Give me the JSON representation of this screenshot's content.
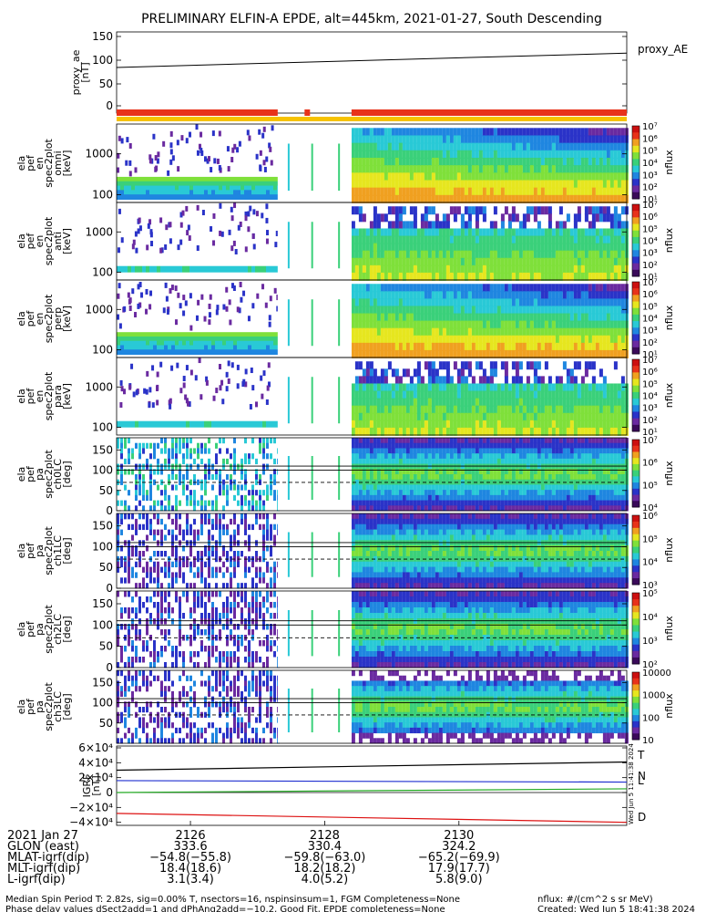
{
  "title": "PRELIMINARY ELFIN-A EPDE, alt=445km, 2021-01-27, South Descending",
  "colors": {
    "colormap": [
      "#ffffff",
      "#3a0a5a",
      "#6a2aa0",
      "#2a33c8",
      "#1f86e0",
      "#29c9d6",
      "#3ad07a",
      "#7fe03a",
      "#e6e61f",
      "#f0a020",
      "#e8321a",
      "#cc1010"
    ],
    "bar_red": "#e8321a",
    "bar_yellow": "#f6c200",
    "trace_T": "#000000",
    "trace_N": "#1f2fd0",
    "trace_L": "#22aa22",
    "trace_D": "#dd1111"
  },
  "panels": {
    "proxy": {
      "ylabel": "proxy_ae\n[nT]",
      "ticks": [
        "150",
        "100",
        "50",
        "0"
      ],
      "legend": "proxy_AE"
    },
    "spec": [
      {
        "ylabel": "ela\npef\nen\nspec2plot\nomni\n[keV]",
        "ticks": [
          "1000",
          "100"
        ],
        "cbar_ticks": [
          "10⁷",
          "10⁶",
          "10⁵",
          "10⁴",
          "10³",
          "10²",
          "10¹"
        ],
        "unit": "nflux"
      },
      {
        "ylabel": "ela\npef\nen\nspec2plot\nanti\n[keV]",
        "ticks": [
          "1000",
          "100"
        ],
        "cbar_ticks": [
          "10⁷",
          "10⁶",
          "10⁵",
          "10⁴",
          "10³",
          "10²",
          "10¹"
        ],
        "unit": "nflux"
      },
      {
        "ylabel": "ela\npef\nen\nspec2plot\nperp\n[keV]",
        "ticks": [
          "1000",
          "100"
        ],
        "cbar_ticks": [
          "10⁷",
          "10⁶",
          "10⁵",
          "10⁴",
          "10³",
          "10²",
          "10¹"
        ],
        "unit": "nflux"
      },
      {
        "ylabel": "ela\npef\nen\nspec2plot\npara\n[keV]",
        "ticks": [
          "1000",
          "100"
        ],
        "cbar_ticks": [
          "10⁷",
          "10⁶",
          "10⁵",
          "10⁴",
          "10³",
          "10²",
          "10¹"
        ],
        "unit": "nflux"
      }
    ],
    "pa": [
      {
        "ylabel": "ela\npef\npa\nspec2plot\nch0LC\n[deg]",
        "ticks": [
          "150",
          "100",
          "50",
          "0"
        ],
        "cbar_ticks": [
          "10⁷",
          "10⁶",
          "10⁵",
          "10⁴"
        ],
        "unit": "nflux"
      },
      {
        "ylabel": "ela\npef\npa\nspec2plot\nch1LC\n[deg]",
        "ticks": [
          "150",
          "100",
          "50",
          "0"
        ],
        "cbar_ticks": [
          "10⁶",
          "10⁵",
          "10⁴",
          "10³"
        ],
        "unit": "nflux"
      },
      {
        "ylabel": "ela\npef\npa\nspec2plot\nch2LC\n[deg]",
        "ticks": [
          "150",
          "100",
          "50",
          "0"
        ],
        "cbar_ticks": [
          "10⁵",
          "10⁴",
          "10³",
          "10²"
        ],
        "unit": "nflux"
      },
      {
        "ylabel": "ela\npef\npa\nspec2plot\nch3LC\n[deg]",
        "ticks": [
          "150",
          "100",
          "50"
        ],
        "cbar_ticks": [
          "10000",
          "1000",
          "100",
          "10"
        ],
        "unit": "nflux"
      }
    ],
    "igrf": {
      "ylabel": "IGRF\n[nT]",
      "ticks": [
        "6×10⁴",
        "4×10⁴",
        "2×10⁴",
        "0",
        "−2×10⁴",
        "−4×10⁴"
      ],
      "labels": [
        "T",
        "N",
        "L",
        "D"
      ]
    }
  },
  "chart_data": {
    "type": "heatmap",
    "x_ticks": [
      "2126",
      "2128",
      "2130"
    ],
    "proxy_ae_line": {
      "x": [
        2124.9,
        2132.5
      ],
      "y": [
        83,
        114
      ]
    },
    "igrf": {
      "T": {
        "x": [
          2124.9,
          2132.5
        ],
        "y": [
          30000,
          41000
        ]
      },
      "N": {
        "x": [
          2124.9,
          2132.5
        ],
        "y": [
          16000,
          14000
        ]
      },
      "L": {
        "x": [
          2124.9,
          2132.5
        ],
        "y": [
          0,
          5000
        ]
      },
      "D": {
        "x": [
          2124.9,
          2132.5
        ],
        "y": [
          -28000,
          -40000
        ]
      }
    }
  },
  "ephemeris": {
    "rows": [
      {
        "label": "2021 Jan 27",
        "v": [
          "2126",
          "2128",
          "2130"
        ]
      },
      {
        "label": "GLON (east)",
        "v": [
          "333.6",
          "330.4",
          "324.2"
        ]
      },
      {
        "label": "MLAT-igrf(dip)",
        "v": [
          "−54.8(−55.8)",
          "−59.8(−63.0)",
          "−65.2(−69.9)"
        ]
      },
      {
        "label": "MLT-igrf(dip)",
        "v": [
          "18.4(18.6)",
          "18.2(18.2)",
          "17.9(17.7)"
        ]
      },
      {
        "label": "L-igrf(dip)",
        "v": [
          "3.1(3.4)",
          "4.0(5.2)",
          "5.8(9.0)"
        ]
      }
    ]
  },
  "footer": {
    "line1": "Median Spin Period T: 2.82s, sig=0.00% T, nsectors=16, nspinsinsum=1, FGM Completeness=None",
    "line2": "Phase delay values dSect2add=1 and dPhAng2add=−10.2, Good Fit, EPDE completeness=None",
    "right1": "nflux: #/(cm^2 s sr MeV)",
    "right2": "Created: Wed Jun  5 18:41:38 2024",
    "stamp": "Wed Jun 5 11:41:38 2024"
  }
}
